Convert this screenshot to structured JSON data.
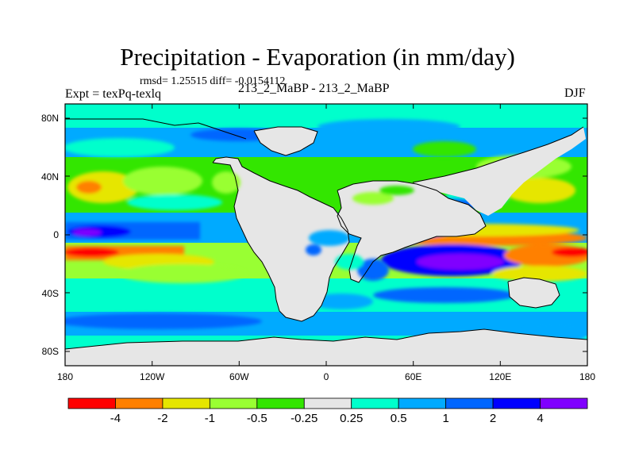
{
  "figure": {
    "title": "Precipitation - Evaporation (in mm/day)",
    "stats": "rmsd= 1.25515 diff= -0.0154112",
    "experiment": "Expt = texPq-texlq",
    "center_label": "213_2_MaBP - 213_2_MaBP",
    "season": "DJF"
  },
  "axes": {
    "lat_ticks": [
      "80N",
      "40N",
      "0",
      "40S",
      "80S"
    ],
    "lon_ticks": [
      "180",
      "120W",
      "60W",
      "0",
      "60E",
      "120E",
      "180"
    ]
  },
  "colorbar": {
    "labels": [
      "-4",
      "-2",
      "-1",
      "-0.5",
      "-0.25",
      "0.25",
      "0.5",
      "1",
      "2",
      "4"
    ],
    "colors": [
      "#ff0000",
      "#ff8000",
      "#e6e600",
      "#99ff33",
      "#33e600",
      "#e6e6e6",
      "#00ffcc",
      "#00aaff",
      "#0066ff",
      "#0000ff",
      "#8000ff"
    ]
  },
  "map_colors": {
    "land": "#e6e6e6",
    "coast": "#000000"
  }
}
